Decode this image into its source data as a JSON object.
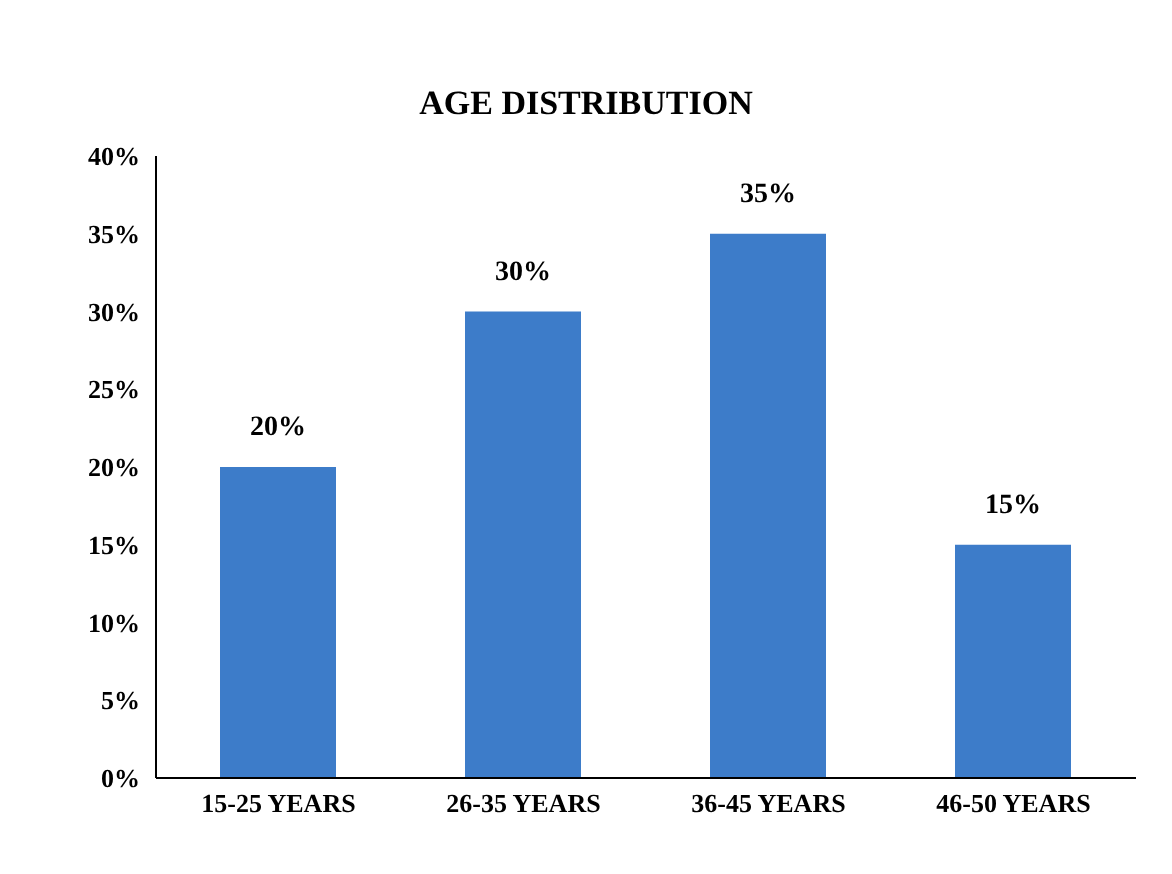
{
  "chart_data": {
    "type": "bar",
    "title": "AGE DISTRIBUTION",
    "categories": [
      "15-25 YEARS",
      "26-35 YEARS",
      "36-45 YEARS",
      "46-50 YEARS"
    ],
    "values": [
      20,
      30,
      35,
      15
    ],
    "color": "#3d7cc9",
    "value_labels": [
      "20%",
      "30%",
      "35%",
      "15%"
    ],
    "ylim": [
      0,
      40
    ],
    "yticks": [
      {
        "value": 0,
        "label": "0%"
      },
      {
        "value": 5,
        "label": "5%"
      },
      {
        "value": 10,
        "label": "10%"
      },
      {
        "value": 15,
        "label": "15%"
      },
      {
        "value": 20,
        "label": "20%"
      },
      {
        "value": 25,
        "label": "25%"
      },
      {
        "value": 30,
        "label": "30%"
      },
      {
        "value": 35,
        "label": "35%"
      },
      {
        "value": 40,
        "label": "40%"
      }
    ],
    "grid": false
  }
}
